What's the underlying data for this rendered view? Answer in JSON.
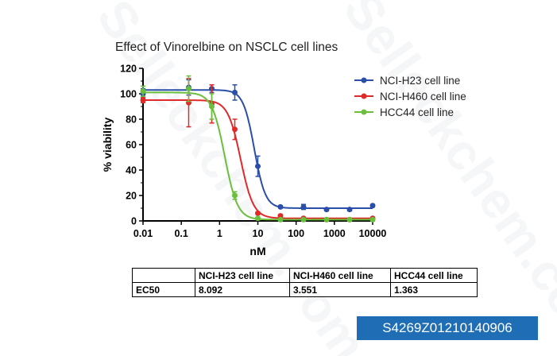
{
  "watermark": "Selleckchem.com",
  "chart_data": {
    "type": "line",
    "title": "Effect of Vinorelbine on NSCLC cell lines",
    "xlabel": "nM",
    "ylabel": "% viability",
    "xscale": "log",
    "xlim": [
      0.01,
      10000
    ],
    "ylim": [
      0,
      120
    ],
    "xticks": [
      "0.01",
      "0.1",
      "1",
      "10",
      "100",
      "1000",
      "10000"
    ],
    "xtick_values": [
      0.01,
      0.1,
      1,
      10,
      100,
      1000,
      10000
    ],
    "yticks": [
      "0",
      "20",
      "40",
      "60",
      "80",
      "100",
      "120"
    ],
    "ytick_values": [
      0,
      20,
      40,
      60,
      80,
      100,
      120
    ],
    "legend_position": "top-right",
    "x": [
      0.01,
      0.156,
      0.625,
      2.5,
      10,
      39,
      156,
      625,
      2500,
      10000
    ],
    "series": [
      {
        "name": "NCI-H23 cell line",
        "color": "#2a4fa8",
        "values": [
          100,
          105,
          104,
          101,
          43,
          11,
          11,
          9,
          9,
          12
        ],
        "errors": [
          4,
          6,
          3,
          6,
          8,
          1,
          2,
          1,
          1,
          1
        ],
        "fit": {
          "top": 103,
          "bottom": 10,
          "ec50": 8.092,
          "hill": 3
        }
      },
      {
        "name": "NCI-H460 cell line",
        "color": "#e02a2a",
        "values": [
          95,
          93,
          92,
          72,
          6,
          4,
          2,
          1,
          1,
          2
        ],
        "errors": [
          2,
          19,
          15,
          8,
          1,
          1,
          1,
          1,
          1,
          1
        ],
        "fit": {
          "top": 95,
          "bottom": 2,
          "ec50": 3.551,
          "hill": 2.6
        }
      },
      {
        "name": "HCC44 cell line",
        "color": "#6abf3c",
        "values": [
          102,
          104,
          90,
          20,
          2,
          1,
          1,
          1,
          1,
          1
        ],
        "errors": [
          4,
          10,
          10,
          3,
          1,
          1,
          1,
          1,
          1,
          1
        ],
        "fit": {
          "top": 101,
          "bottom": 1,
          "ec50": 1.363,
          "hill": 2.6
        }
      }
    ]
  },
  "table": {
    "headers": [
      "",
      "NCI-H23 cell line",
      "NCI-H460 cell line",
      "HCC44 cell line"
    ],
    "row_label": "EC50",
    "values": [
      "8.092",
      "3.551",
      "1.363"
    ]
  },
  "id_label": "S4269Z01210140906"
}
